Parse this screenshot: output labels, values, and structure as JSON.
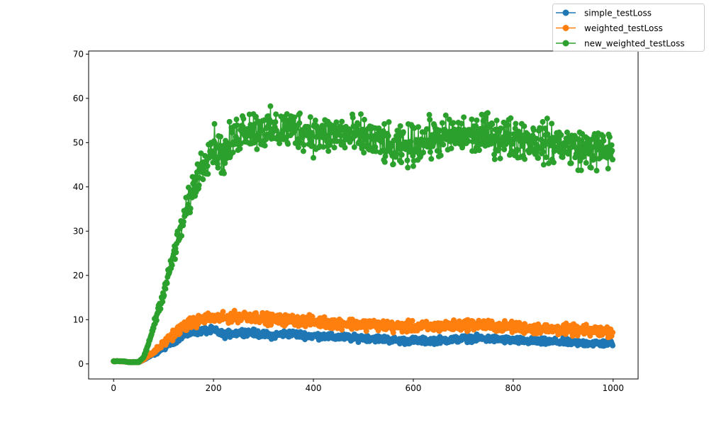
{
  "chart_data": {
    "type": "line",
    "title": "",
    "xlabel": "",
    "ylabel": "",
    "xlim": [
      -50,
      1050
    ],
    "ylim": [
      -3.4,
      70.7
    ],
    "x_ticks": [
      0,
      200,
      400,
      600,
      800,
      1000
    ],
    "x_tick_labels": [
      "0",
      "200",
      "400",
      "600",
      "800",
      "1000"
    ],
    "y_ticks": [
      0,
      10,
      20,
      30,
      40,
      50,
      60,
      70
    ],
    "y_tick_labels": [
      "0",
      "10",
      "20",
      "30",
      "40",
      "50",
      "60",
      "70"
    ],
    "grid": false,
    "legend_position": "top-right",
    "marker": "circle",
    "x_range": [
      0,
      999
    ],
    "series": [
      {
        "name": "simple_testLoss",
        "color": "#1f77b4",
        "points": [
          [
            0,
            0.6
          ],
          [
            20,
            0.6
          ],
          [
            30,
            0.4
          ],
          [
            50,
            0.4
          ],
          [
            60,
            0.9
          ],
          [
            80,
            2.2
          ],
          [
            100,
            3.6
          ],
          [
            120,
            5.2
          ],
          [
            140,
            6.5
          ],
          [
            160,
            7.2
          ],
          [
            180,
            7.5
          ],
          [
            200,
            7.6
          ],
          [
            220,
            6.6
          ],
          [
            240,
            6.9
          ],
          [
            260,
            7.2
          ],
          [
            280,
            7.0
          ],
          [
            300,
            6.6
          ],
          [
            320,
            6.4
          ],
          [
            340,
            6.8
          ],
          [
            360,
            6.8
          ],
          [
            380,
            6.5
          ],
          [
            400,
            6.3
          ],
          [
            420,
            6.3
          ],
          [
            440,
            6.0
          ],
          [
            460,
            6.1
          ],
          [
            480,
            5.8
          ],
          [
            500,
            5.9
          ],
          [
            520,
            5.8
          ],
          [
            540,
            5.6
          ],
          [
            560,
            5.4
          ],
          [
            580,
            5.2
          ],
          [
            600,
            5.3
          ],
          [
            620,
            5.2
          ],
          [
            640,
            5.3
          ],
          [
            660,
            5.4
          ],
          [
            680,
            5.5
          ],
          [
            700,
            5.7
          ],
          [
            720,
            5.8
          ],
          [
            740,
            5.7
          ],
          [
            760,
            5.6
          ],
          [
            780,
            5.5
          ],
          [
            800,
            5.3
          ],
          [
            820,
            5.2
          ],
          [
            840,
            5.1
          ],
          [
            860,
            5.0
          ],
          [
            880,
            5.0
          ],
          [
            900,
            5.0
          ],
          [
            920,
            4.8
          ],
          [
            940,
            4.7
          ],
          [
            960,
            4.7
          ],
          [
            980,
            4.6
          ],
          [
            999,
            4.8
          ]
        ],
        "noise": 0.55
      },
      {
        "name": "weighted_testLoss",
        "color": "#ff7f0e",
        "points": [
          [
            0,
            0.6
          ],
          [
            20,
            0.6
          ],
          [
            30,
            0.4
          ],
          [
            50,
            0.4
          ],
          [
            60,
            1.0
          ],
          [
            80,
            2.6
          ],
          [
            100,
            4.6
          ],
          [
            120,
            6.8
          ],
          [
            140,
            8.4
          ],
          [
            160,
            9.4
          ],
          [
            180,
            10.1
          ],
          [
            200,
            10.4
          ],
          [
            220,
            10.3
          ],
          [
            240,
            10.6
          ],
          [
            260,
            10.8
          ],
          [
            280,
            10.7
          ],
          [
            300,
            10.3
          ],
          [
            320,
            10.0
          ],
          [
            340,
            9.9
          ],
          [
            360,
            9.9
          ],
          [
            380,
            9.7
          ],
          [
            400,
            9.6
          ],
          [
            420,
            9.4
          ],
          [
            440,
            9.2
          ],
          [
            460,
            9.2
          ],
          [
            480,
            9.0
          ],
          [
            500,
            8.9
          ],
          [
            520,
            8.9
          ],
          [
            540,
            8.7
          ],
          [
            560,
            8.3
          ],
          [
            580,
            8.4
          ],
          [
            600,
            8.4
          ],
          [
            620,
            8.3
          ],
          [
            640,
            8.4
          ],
          [
            660,
            8.5
          ],
          [
            680,
            8.6
          ],
          [
            700,
            8.8
          ],
          [
            720,
            8.9
          ],
          [
            740,
            8.8
          ],
          [
            760,
            8.6
          ],
          [
            780,
            8.4
          ],
          [
            800,
            8.3
          ],
          [
            820,
            8.2
          ],
          [
            840,
            8.0
          ],
          [
            860,
            7.9
          ],
          [
            880,
            7.8
          ],
          [
            900,
            7.8
          ],
          [
            920,
            7.6
          ],
          [
            940,
            7.5
          ],
          [
            960,
            7.4
          ],
          [
            980,
            7.3
          ],
          [
            999,
            7.4
          ]
        ],
        "noise": 0.9
      },
      {
        "name": "new_weighted_testLoss",
        "color": "#2ca02c",
        "points": [
          [
            0,
            0.6
          ],
          [
            20,
            0.6
          ],
          [
            30,
            0.4
          ],
          [
            50,
            0.4
          ],
          [
            60,
            1.5
          ],
          [
            70,
            4.5
          ],
          [
            80,
            8.5
          ],
          [
            90,
            12.5
          ],
          [
            100,
            16.0
          ],
          [
            110,
            20.0
          ],
          [
            120,
            24.5
          ],
          [
            130,
            28.5
          ],
          [
            140,
            32.5
          ],
          [
            150,
            36.0
          ],
          [
            160,
            40.0
          ],
          [
            170,
            43.0
          ],
          [
            180,
            45.5
          ],
          [
            190,
            48.5
          ],
          [
            200,
            49.5
          ],
          [
            210,
            48.0
          ],
          [
            220,
            47.0
          ],
          [
            240,
            50.5
          ],
          [
            260,
            53.5
          ],
          [
            280,
            53.0
          ],
          [
            300,
            53.0
          ],
          [
            320,
            52.5
          ],
          [
            340,
            53.0
          ],
          [
            360,
            53.0
          ],
          [
            380,
            53.0
          ],
          [
            400,
            52.0
          ],
          [
            420,
            51.5
          ],
          [
            440,
            52.0
          ],
          [
            460,
            52.0
          ],
          [
            480,
            51.5
          ],
          [
            500,
            51.0
          ],
          [
            520,
            50.5
          ],
          [
            540,
            50.0
          ],
          [
            560,
            48.0
          ],
          [
            580,
            49.0
          ],
          [
            600,
            49.5
          ],
          [
            620,
            50.5
          ],
          [
            640,
            51.0
          ],
          [
            660,
            51.0
          ],
          [
            680,
            51.5
          ],
          [
            700,
            51.5
          ],
          [
            720,
            51.5
          ],
          [
            740,
            52.0
          ],
          [
            760,
            51.5
          ],
          [
            780,
            51.5
          ],
          [
            800,
            51.0
          ],
          [
            820,
            51.0
          ],
          [
            840,
            50.5
          ],
          [
            860,
            50.0
          ],
          [
            880,
            50.0
          ],
          [
            900,
            49.5
          ],
          [
            920,
            49.0
          ],
          [
            940,
            48.5
          ],
          [
            960,
            48.5
          ],
          [
            980,
            48.0
          ],
          [
            999,
            48.5
          ]
        ],
        "noise": 3.4
      }
    ]
  }
}
